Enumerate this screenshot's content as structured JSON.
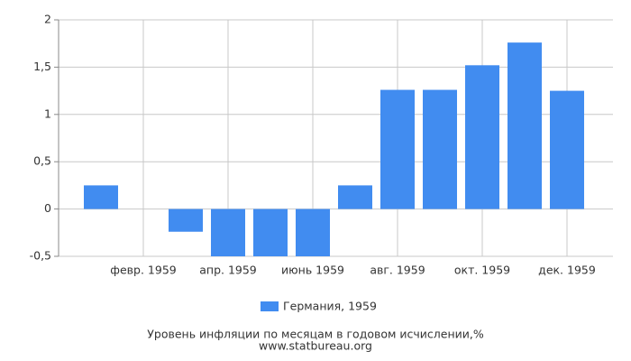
{
  "chart_data": {
    "type": "bar",
    "title": "Уровень инфляции по месяцам в годовом исчислении,%",
    "subtitle": "www.statbureau.org",
    "categories": [
      null,
      "февр. 1959",
      null,
      "апр. 1959",
      null,
      "июнь 1959",
      null,
      "авг. 1959",
      null,
      "окт. 1959",
      null,
      "дек. 1959"
    ],
    "series": [
      {
        "name": "Германия, 1959",
        "color": "#418cf0",
        "values": [
          0.25,
          0,
          -0.24,
          -0.5,
          -0.5,
          -0.5,
          0.25,
          1.26,
          1.26,
          1.52,
          1.76,
          1.25
        ]
      }
    ],
    "ylim": [
      -0.5,
      2
    ],
    "yticks": [
      {
        "value": -0.5,
        "label": "-0,5"
      },
      0,
      {
        "value": 0.5,
        "label": "0,5"
      },
      1,
      {
        "value": 1.5,
        "label": "1,5"
      },
      2
    ],
    "grid": true
  }
}
